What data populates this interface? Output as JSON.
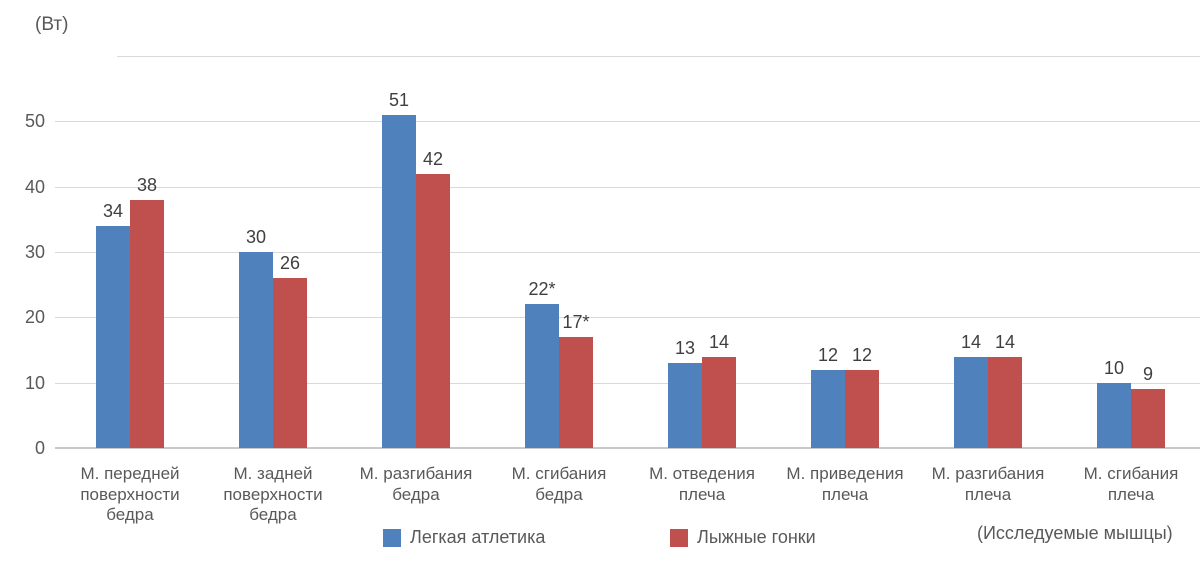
{
  "chart_data": {
    "type": "bar",
    "title": "",
    "unit_label": "(Вт)",
    "axis_note": "(Исследуемые мышцы)",
    "xlabel": "Исследуемые мышцы",
    "ylabel": "Вт",
    "categories": [
      "М. передней поверхности бедра",
      "М. задней поверхности бедра",
      "М. разгибания бедра",
      "М. сгибания бедра",
      "М. отведения плеча",
      "М. приведения плеча",
      "М. разгибания плеча",
      "М. сгибания плеча"
    ],
    "series": [
      {
        "name": "Легкая атлетика",
        "color": "#4F81BD",
        "values": [
          34,
          30,
          51,
          22,
          13,
          12,
          14,
          10
        ],
        "labels": [
          "34",
          "30",
          "51",
          "22*",
          "13",
          "12",
          "14",
          "10"
        ]
      },
      {
        "name": "Лыжные гонки",
        "color": "#C0504D",
        "values": [
          38,
          26,
          42,
          17,
          14,
          12,
          14,
          9
        ],
        "labels": [
          "38",
          "26",
          "42",
          "17*",
          "14",
          "12",
          "14",
          "9"
        ]
      }
    ],
    "y_ticks": [
      0,
      10,
      20,
      30,
      40,
      50
    ],
    "ylim": [
      0,
      60
    ],
    "grid": true,
    "legend_position": "bottom",
    "colors": {
      "grid": "#D9D9D9",
      "axis": "#C9C9C9",
      "tick_text": "#595959",
      "value_text": "#3F3F3F"
    }
  }
}
